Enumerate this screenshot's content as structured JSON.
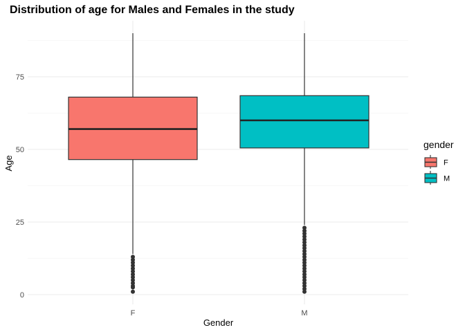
{
  "chart_data": {
    "type": "boxplot",
    "title": "Distribution of age for Males and Females in the study",
    "xlabel": "Gender",
    "ylabel": "Age",
    "ylim": [
      -3,
      92
    ],
    "yticks": [
      0,
      25,
      50,
      75
    ],
    "minor_grid": [
      12.5,
      37.5,
      62.5,
      87.5
    ],
    "grid": true,
    "categories": [
      "F",
      "M"
    ],
    "boxes": [
      {
        "category": "F",
        "whisker_low": 14,
        "q1": 46.5,
        "median": 57,
        "q3": 68,
        "whisker_high": 90,
        "color": "#F8766D",
        "outliers": [
          1,
          2.5,
          3,
          4,
          5,
          6,
          7,
          8,
          9,
          10,
          11,
          12,
          13
        ]
      },
      {
        "category": "M",
        "whisker_low": 24,
        "q1": 50.5,
        "median": 60,
        "q3": 68.5,
        "whisker_high": 90,
        "color": "#00BFC4",
        "outliers": [
          1,
          2,
          3,
          4,
          5,
          6,
          7,
          8,
          9,
          10,
          11,
          12,
          13,
          14,
          15,
          16,
          17,
          18,
          19,
          20,
          21,
          22,
          23
        ]
      }
    ],
    "legend": {
      "title": "gender",
      "placement": "right",
      "items": [
        {
          "label": "F",
          "color": "#F8766D"
        },
        {
          "label": "M",
          "color": "#00BFC4"
        }
      ]
    }
  }
}
